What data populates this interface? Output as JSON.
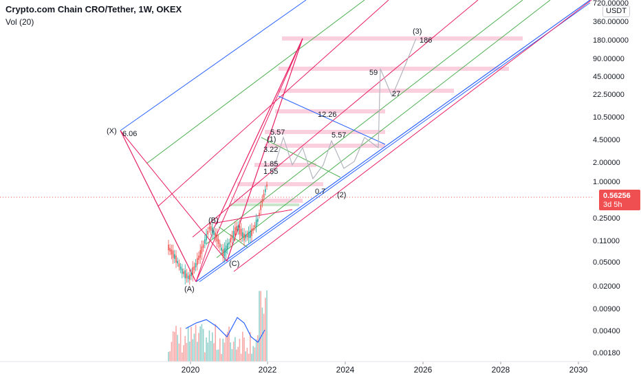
{
  "header": {
    "symbol": "Crypto.com Chain CRO/Tether, 1W, OKEX",
    "volume_label": "Vol (20)"
  },
  "currency_button": "USDT",
  "last_price": {
    "value": "0.56256",
    "countdown": "3d 5h",
    "color": "#f04f51"
  },
  "chart_data": {
    "type": "line",
    "y_scale": "log",
    "x_ticks": [
      "2020",
      "2022",
      "2024",
      "2026",
      "2028",
      "2030"
    ],
    "y_ticks": [
      "720.00000",
      "360.00000",
      "180.00000",
      "90.00000",
      "45.00000",
      "22.50000",
      "10.50000",
      "4.50000",
      "2.00000",
      "1.00000",
      "0.25000",
      "0.11000",
      "0.05000",
      "0.02000",
      "0.00900",
      "0.00400",
      "0.00180"
    ],
    "wave_labels": [
      "(X)",
      "(A)",
      "(B)",
      "(C)",
      "(1)",
      "(2)",
      "(3)"
    ],
    "annotations": [
      "6.06",
      "5.57",
      "3.22",
      "1.85",
      "1.55",
      "0.7",
      "5.57",
      "12.26",
      "59",
      "27",
      "186"
    ],
    "colors": {
      "candle_up": "#26a69a",
      "candle_down": "#ef5350",
      "volume_ma": "#2962ff",
      "pitchfork_blue": "#2962ff",
      "pitchfork_red": "#e91e63",
      "pitchfork_green": "#4caf50",
      "projection": "#b2b5be",
      "zones": "#f8bbd0"
    }
  }
}
